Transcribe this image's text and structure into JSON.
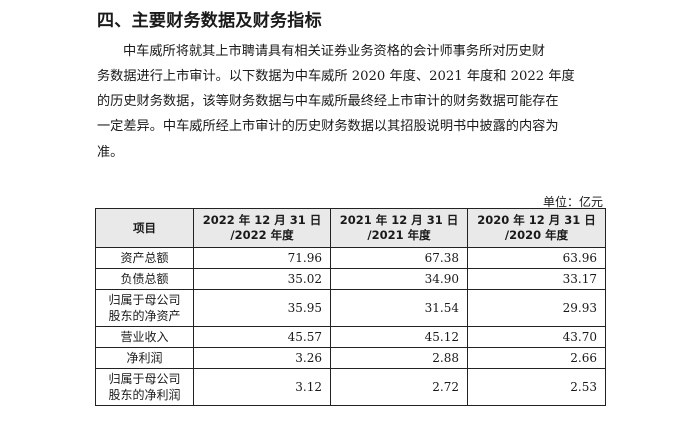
{
  "heading": "四、主要财务数据及财务指标",
  "paragraph_lines": [
    "中车威所将就其上市聘请具有相关证券业务资格的会计师事务所对历史财",
    "务数据进行上市审计。以下数据为中车威所 2020 年度、2021 年度和 2022 年度",
    "的历史财务数据，该等财务数据与中车威所最终经上市审计的财务数据可能存在",
    "一定差异。中车威所经上市审计的历史财务数据以其招股说明书中披露的内容为",
    "准。"
  ],
  "unit": "单位：亿元",
  "table": {
    "headers": [
      {
        "l1": "项目",
        "l2": ""
      },
      {
        "l1": "2022 年 12 月 31 日",
        "l2": "/2022 年度"
      },
      {
        "l1": "2021 年 12 月 31 日",
        "l2": "/2021 年度"
      },
      {
        "l1": "2020 年 12 月 31 日",
        "l2": "/2020 年度"
      }
    ],
    "rows": [
      {
        "label_l1": "资产总额",
        "label_l2": "",
        "values": [
          "71.96",
          "67.38",
          "63.96"
        ]
      },
      {
        "label_l1": "负债总额",
        "label_l2": "",
        "values": [
          "35.02",
          "34.90",
          "33.17"
        ]
      },
      {
        "label_l1": "归属于母公司",
        "label_l2": "股东的净资产",
        "values": [
          "35.95",
          "31.54",
          "29.93"
        ]
      },
      {
        "label_l1": "营业收入",
        "label_l2": "",
        "values": [
          "45.57",
          "45.12",
          "43.70"
        ]
      },
      {
        "label_l1": "净利润",
        "label_l2": "",
        "values": [
          "3.26",
          "2.88",
          "2.66"
        ]
      },
      {
        "label_l1": "归属于母公司",
        "label_l2": "股东的净利润",
        "values": [
          "3.12",
          "2.72",
          "2.53"
        ]
      }
    ]
  }
}
